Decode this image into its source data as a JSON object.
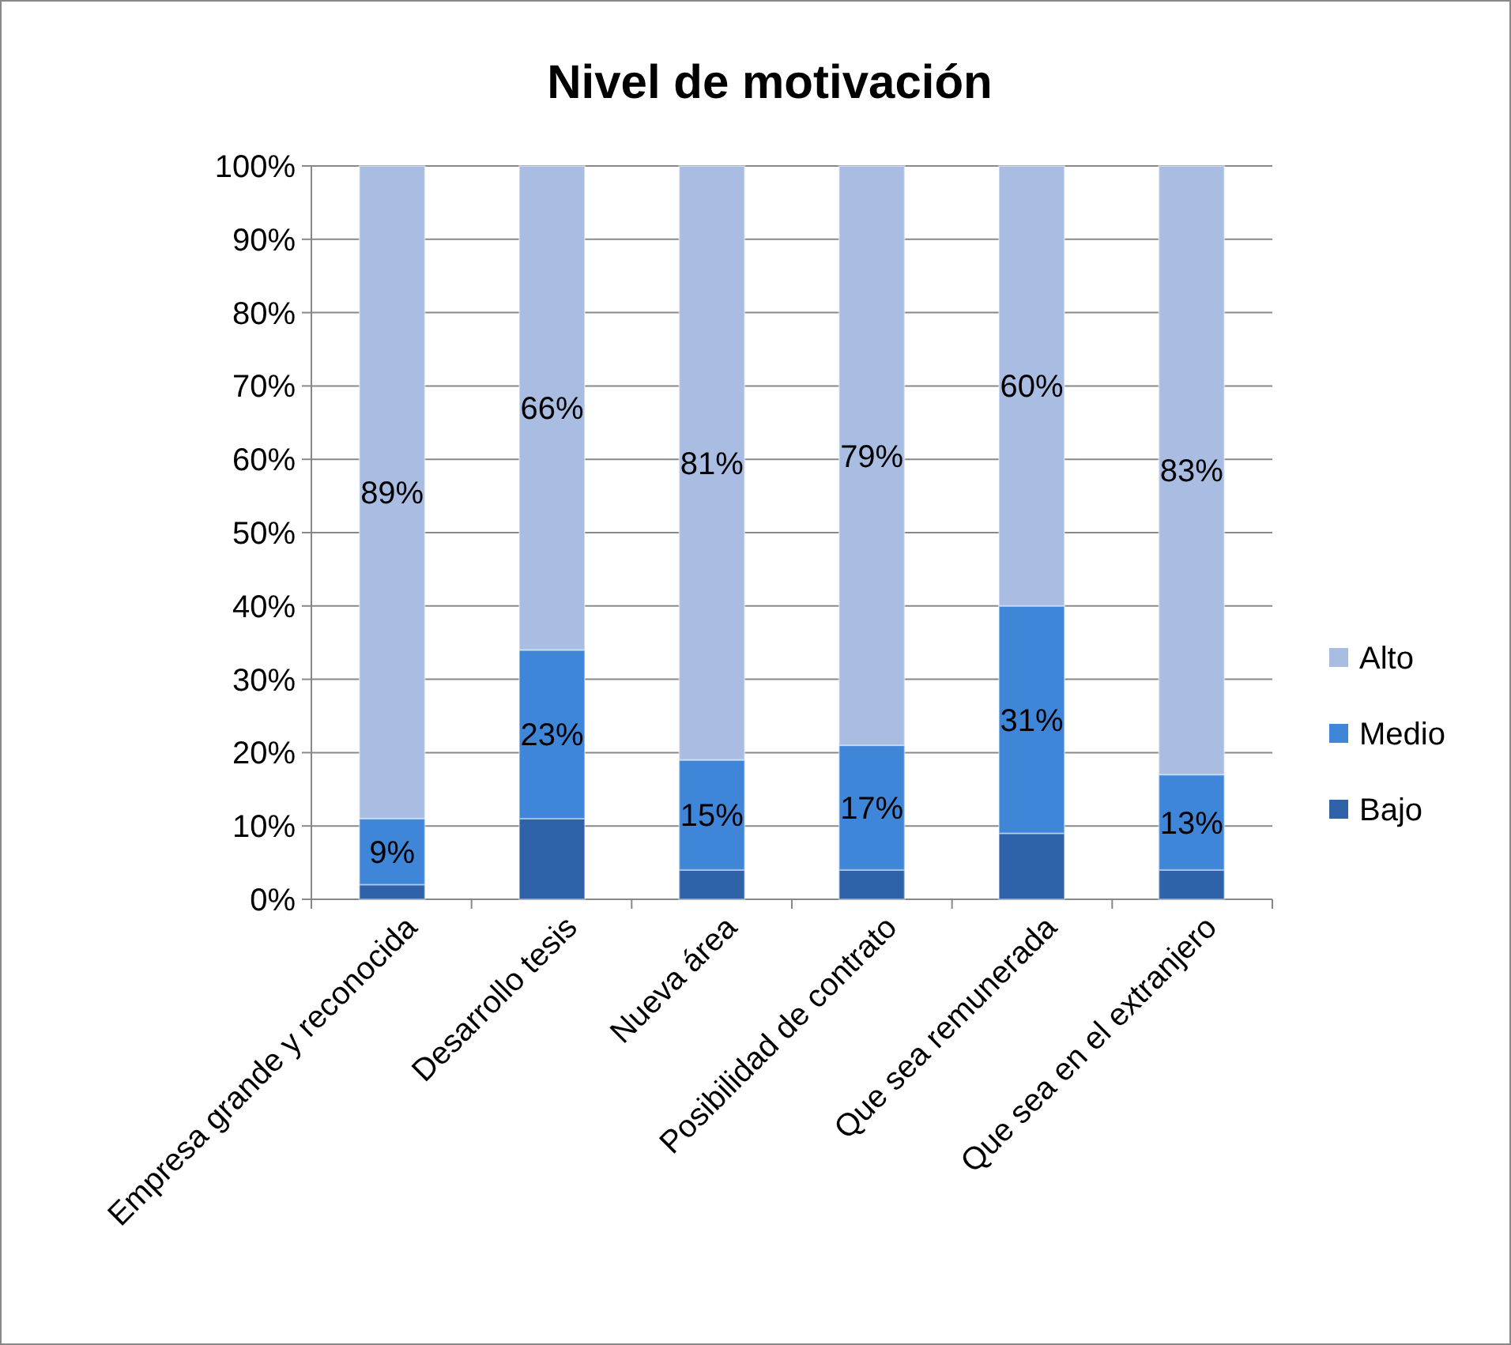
{
  "chart_data": {
    "type": "bar",
    "title": "Nivel de motivación",
    "stacked": true,
    "categories": [
      "Empresa grande y reconocida",
      "Desarrollo tesis",
      "Nueva área",
      "Posibilidad de contrato",
      "Que sea remunerada",
      "Que sea en el extranjero"
    ],
    "series": [
      {
        "name": "Bajo",
        "color": "#2f62a8",
        "values": [
          2,
          11,
          4,
          4,
          9,
          4
        ]
      },
      {
        "name": "Medio",
        "color": "#3f86d8",
        "values": [
          9,
          23,
          15,
          17,
          31,
          13
        ],
        "value_labels": [
          "9%",
          "23%",
          "15%",
          "17%",
          "31%",
          "13%"
        ]
      },
      {
        "name": "Alto",
        "color": "#a9bde3",
        "values": [
          89,
          66,
          81,
          79,
          60,
          83
        ],
        "value_labels": [
          "89%",
          "66%",
          "81%",
          "79%",
          "60%",
          "83%"
        ]
      }
    ],
    "ylim": [
      0,
      100
    ],
    "yticks": [
      {
        "value": 0,
        "label": "0%"
      },
      {
        "value": 10,
        "label": "10%"
      },
      {
        "value": 20,
        "label": "20%"
      },
      {
        "value": 30,
        "label": "30%"
      },
      {
        "value": 40,
        "label": "40%"
      },
      {
        "value": 50,
        "label": "50%"
      },
      {
        "value": 60,
        "label": "60%"
      },
      {
        "value": 70,
        "label": "70%"
      },
      {
        "value": 80,
        "label": "80%"
      },
      {
        "value": 90,
        "label": "90%"
      },
      {
        "value": 100,
        "label": "100%"
      }
    ],
    "grid": "y",
    "legend": "right"
  }
}
